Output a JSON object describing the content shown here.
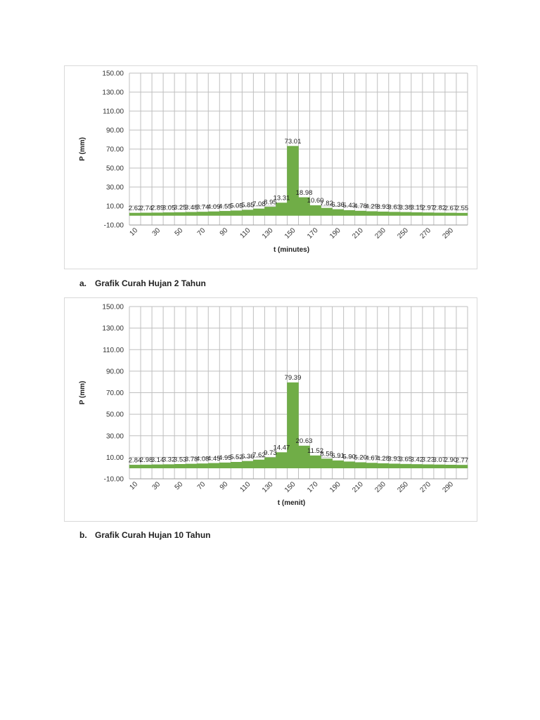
{
  "chart_data": [
    {
      "type": "area",
      "title": "",
      "xlabel": "t (minutes)",
      "ylabel": "P (mm)",
      "ylim": [
        -10,
        150
      ],
      "yticks": [
        "150.00",
        "130.00",
        "110.00",
        "90.00",
        "70.00",
        "50.00",
        "30.00",
        "10.00",
        "-10.00"
      ],
      "xtick_labels": [
        "10",
        "30",
        "50",
        "70",
        "90",
        "110",
        "130",
        "150",
        "170",
        "190",
        "210",
        "230",
        "250",
        "270",
        "290"
      ],
      "grid": true,
      "color": "#70ad47",
      "x": [
        10,
        20,
        30,
        40,
        50,
        60,
        70,
        80,
        90,
        100,
        110,
        120,
        130,
        140,
        150,
        160,
        170,
        180,
        190,
        200,
        210,
        220,
        230,
        240,
        250,
        260,
        270,
        280,
        290,
        300
      ],
      "values": [
        2.62,
        2.74,
        2.89,
        3.05,
        3.25,
        3.48,
        3.74,
        4.09,
        4.55,
        5.05,
        5.85,
        7.08,
        8.95,
        13.31,
        73.01,
        18.98,
        10.6,
        7.82,
        6.36,
        5.43,
        4.78,
        4.29,
        3.93,
        3.63,
        3.38,
        3.15,
        2.97,
        2.82,
        2.67,
        2.55
      ],
      "labels": [
        "2.62",
        "2.74",
        "2.89",
        "3.05",
        "3.25",
        "3.48",
        "3.74",
        "4.09",
        "4.55",
        "5.05",
        "5.85",
        "7.08",
        "8.95",
        "13.31",
        "73.01",
        "18.98",
        "10.60",
        "7.82",
        "6.36",
        "5.43",
        "4.78",
        "4.29",
        "3.93",
        "3.63",
        "3.38",
        "3.15",
        "2.97",
        "2.82",
        "2.67",
        "2.55"
      ]
    },
    {
      "type": "area",
      "title": "",
      "xlabel": "t (menit)",
      "ylabel": "P (mm)",
      "ylim": [
        -10,
        150
      ],
      "yticks": [
        "150.00",
        "130.00",
        "110.00",
        "90.00",
        "70.00",
        "50.00",
        "30.00",
        "10.00",
        "-10.00"
      ],
      "xtick_labels": [
        "10",
        "30",
        "50",
        "70",
        "90",
        "110",
        "130",
        "150",
        "170",
        "190",
        "210",
        "230",
        "250",
        "270",
        "290"
      ],
      "grid": true,
      "color": "#70ad47",
      "x": [
        10,
        20,
        30,
        40,
        50,
        60,
        70,
        80,
        90,
        100,
        110,
        120,
        130,
        140,
        150,
        160,
        170,
        180,
        190,
        200,
        210,
        220,
        230,
        240,
        250,
        260,
        270,
        280,
        290,
        300
      ],
      "values": [
        2.84,
        2.98,
        3.14,
        3.32,
        3.53,
        3.78,
        4.08,
        4.45,
        4.95,
        5.52,
        6.36,
        7.62,
        9.73,
        14.47,
        79.39,
        20.63,
        11.52,
        8.58,
        6.91,
        5.9,
        5.2,
        4.67,
        4.28,
        3.93,
        3.65,
        3.42,
        3.23,
        3.07,
        2.9,
        2.77
      ],
      "labels": [
        "2.84",
        "2.98",
        "3.14",
        "3.32",
        "3.53",
        "3.78",
        "4.08",
        "4.45",
        "4.95",
        "5.52",
        "6.36",
        "7.62",
        "9.73",
        "14.47",
        "79.39",
        "20.63",
        "11.52",
        "8.58",
        "6.91",
        "5.90",
        "5.20",
        "4.67",
        "4.28",
        "3.93",
        "3.65",
        "3.42",
        "3.23",
        "3.07",
        "2.90",
        "2.77"
      ]
    }
  ],
  "captions": [
    {
      "letter": "a.",
      "text": "Grafik Curah Hujan 2 Tahun"
    },
    {
      "letter": "b.",
      "text": "Grafik Curah Hujan 10 Tahun"
    }
  ]
}
